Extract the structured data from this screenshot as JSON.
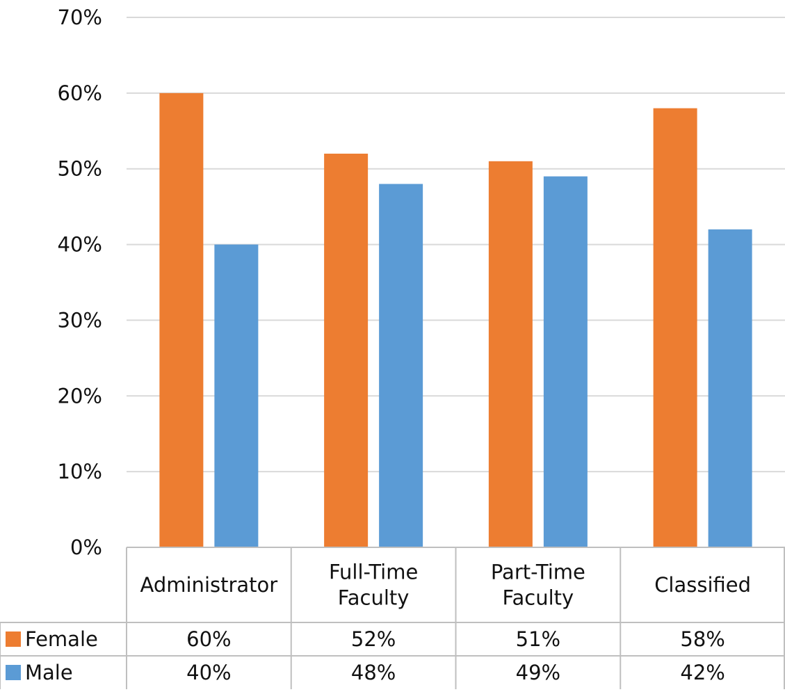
{
  "chart_data": {
    "type": "bar",
    "title": "",
    "xlabel": "",
    "ylabel": "",
    "ylim": [
      0,
      70
    ],
    "y_ticks": [
      "0%",
      "10%",
      "20%",
      "30%",
      "40%",
      "50%",
      "60%",
      "70%"
    ],
    "grid": true,
    "legend": "data-table",
    "categories": [
      [
        "Administrator"
      ],
      [
        "Full-Time",
        "Faculty"
      ],
      [
        "Part-Time",
        "Faculty"
      ],
      [
        "Classified"
      ]
    ],
    "series": [
      {
        "name": "Female",
        "color": "#ED7D31",
        "values": [
          60,
          52,
          51,
          58
        ],
        "labels": [
          "60%",
          "52%",
          "51%",
          "58%"
        ]
      },
      {
        "name": "Male",
        "color": "#5B9BD5",
        "values": [
          40,
          48,
          49,
          42
        ],
        "labels": [
          "40%",
          "48%",
          "49%",
          "42%"
        ]
      }
    ]
  }
}
